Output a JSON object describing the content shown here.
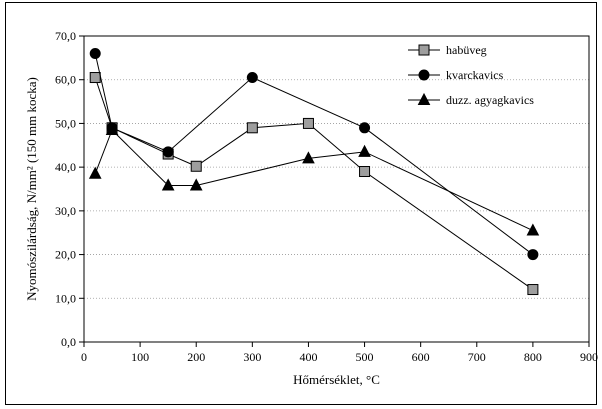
{
  "chart_data": {
    "type": "line",
    "xlabel": "Hőmérséklet, °C",
    "ylabel": "Nyomószilárdság, N/mm² (150 mm kocka)",
    "xlim": [
      0,
      900
    ],
    "ylim": [
      0,
      70
    ],
    "xticks": [
      0,
      100,
      200,
      300,
      400,
      500,
      600,
      700,
      800,
      900
    ],
    "yticks": [
      0,
      10,
      20,
      30,
      40,
      50,
      60,
      70
    ],
    "ytick_labels": [
      "0,0",
      "10,0",
      "20,0",
      "30,0",
      "40,0",
      "50,0",
      "60,0",
      "70,0"
    ],
    "grid": "horizontal dotted",
    "legend_position": "top-right",
    "series": [
      {
        "name": "habüveg",
        "marker": "square",
        "color": "#888888",
        "points": [
          [
            20,
            60.5
          ],
          [
            50,
            49.0
          ],
          [
            150,
            43.0
          ],
          [
            200,
            40.2
          ],
          [
            300,
            49.0
          ],
          [
            400,
            50.0
          ],
          [
            500,
            39.0
          ],
          [
            800,
            12.0
          ]
        ]
      },
      {
        "name": "kvarckavics",
        "marker": "circle",
        "color": "#000000",
        "points": [
          [
            20,
            66.0
          ],
          [
            50,
            49.0
          ],
          [
            150,
            43.5
          ],
          [
            300,
            60.5
          ],
          [
            500,
            49.0
          ],
          [
            800,
            20.0
          ]
        ]
      },
      {
        "name": "duzz. agyagkavics",
        "marker": "triangle",
        "color": "#000000",
        "points": [
          [
            20,
            38.5
          ],
          [
            50,
            48.5
          ],
          [
            150,
            35.8
          ],
          [
            200,
            35.8
          ],
          [
            400,
            42.0
          ],
          [
            500,
            43.5
          ],
          [
            800,
            25.5
          ]
        ]
      }
    ]
  }
}
